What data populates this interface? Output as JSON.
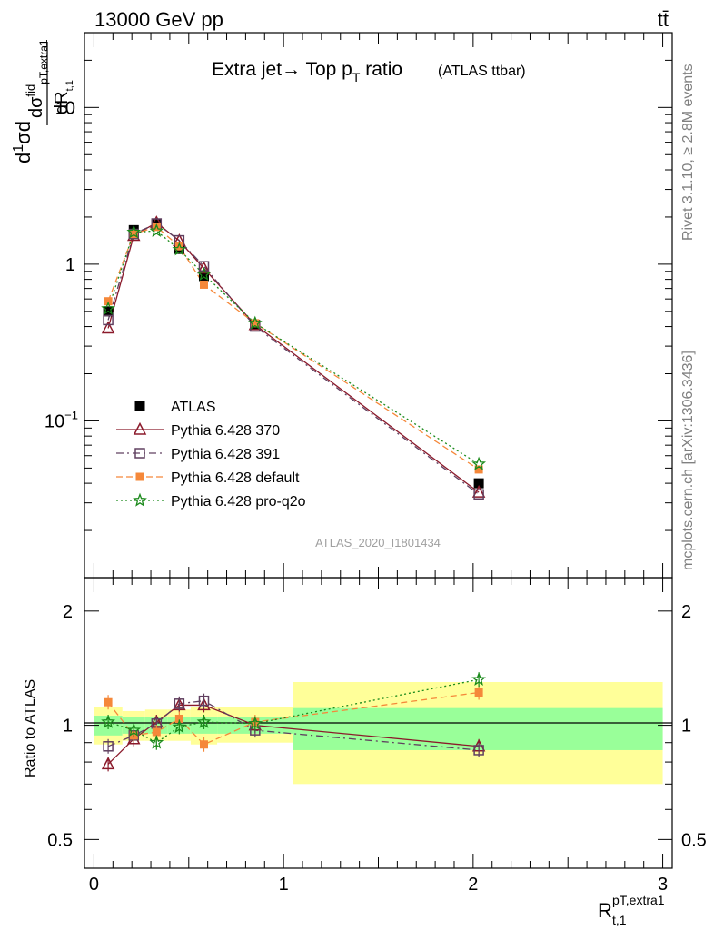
{
  "header": {
    "energy_label": "13000 GeV pp",
    "process_label": "tt̄"
  },
  "side": {
    "rivet_label": "Rivet 3.1.10, ≥ 2.8M events",
    "mcplots_label": "mcplots.cern.ch [arXiv:1306.3436]"
  },
  "chart_data": [
    {
      "type": "scatter",
      "title": "Extra jet→ Top p_T ratio",
      "subtitle": "(ATLAS ttbar)",
      "analysis_id": "ATLAS_2020_I1801434",
      "ylabel": "1/σ dσ^fid/dR_{pT,extra1} / d R_{t,1}",
      "yscale": "log",
      "ylim": [
        0.01,
        30
      ],
      "xlim": [
        -0.05,
        3.05
      ],
      "y_tick_labels": [
        "10^-1",
        "1",
        "10"
      ],
      "legend_position": "lower-left",
      "x": [
        0.075,
        0.21,
        0.33,
        0.45,
        0.58,
        0.85,
        2.03
      ],
      "series": [
        {
          "name": "ATLAS",
          "color": "#000000",
          "marker": "square",
          "line": "none",
          "values": [
            0.5,
            1.65,
            1.8,
            1.25,
            0.84,
            0.41,
            0.04
          ]
        },
        {
          "name": "Pythia 6.428 370",
          "color": "#8b1a2b",
          "marker": "triangle-open",
          "line": "solid",
          "values": [
            0.39,
            1.52,
            1.84,
            1.41,
            0.94,
            0.41,
            0.035
          ]
        },
        {
          "name": "Pythia 6.428 391",
          "color": "#604060",
          "marker": "square-open",
          "line": "dashdot",
          "values": [
            0.44,
            1.56,
            1.82,
            1.42,
            0.97,
            0.4,
            0.034
          ]
        },
        {
          "name": "Pythia 6.428 default",
          "color": "#f5883a",
          "marker": "square-filled",
          "line": "dashed",
          "values": [
            0.58,
            1.56,
            1.73,
            1.3,
            0.74,
            0.42,
            0.049
          ]
        },
        {
          "name": "Pythia 6.428 pro-q2o",
          "color": "#1b8a1b",
          "marker": "star-open",
          "line": "dotted",
          "values": [
            0.52,
            1.6,
            1.63,
            1.24,
            0.86,
            0.42,
            0.053
          ]
        }
      ]
    },
    {
      "type": "scatter",
      "ylabel": "Ratio to ATLAS",
      "xlabel": "R_{t,1}^{pT,extra1}",
      "yscale": "log",
      "ylim": [
        0.42,
        2.45
      ],
      "xlim": [
        -0.05,
        3.05
      ],
      "y_tick_labels": [
        "0.5",
        "1",
        "2"
      ],
      "x_tick_labels": [
        "0",
        "1",
        "2",
        "3"
      ],
      "reference_line": 1.0,
      "bands": [
        {
          "x_low": 0.0,
          "x_high": 0.15,
          "stat_low": 0.94,
          "stat_high": 1.06,
          "tot_low": 0.89,
          "tot_high": 1.12
        },
        {
          "x_low": 0.15,
          "x_high": 0.27,
          "stat_low": 0.95,
          "stat_high": 1.05,
          "tot_low": 0.91,
          "tot_high": 1.09
        },
        {
          "x_low": 0.27,
          "x_high": 0.39,
          "stat_low": 0.95,
          "stat_high": 1.05,
          "tot_low": 0.91,
          "tot_high": 1.1
        },
        {
          "x_low": 0.39,
          "x_high": 0.51,
          "stat_low": 0.95,
          "stat_high": 1.05,
          "tot_low": 0.91,
          "tot_high": 1.1
        },
        {
          "x_low": 0.51,
          "x_high": 0.65,
          "stat_low": 0.95,
          "stat_high": 1.05,
          "tot_low": 0.89,
          "tot_high": 1.12
        },
        {
          "x_low": 0.65,
          "x_high": 1.05,
          "stat_low": 0.95,
          "stat_high": 1.05,
          "tot_low": 0.9,
          "tot_high": 1.12
        },
        {
          "x_low": 1.05,
          "x_high": 3.0,
          "stat_low": 0.86,
          "stat_high": 1.11,
          "tot_low": 0.7,
          "tot_high": 1.3
        }
      ],
      "series": [
        {
          "name": "Pythia 6.428 370",
          "values": [
            0.79,
            0.92,
            1.02,
            1.13,
            1.13,
            1.0,
            0.88
          ]
        },
        {
          "name": "Pythia 6.428 391",
          "values": [
            0.88,
            0.94,
            1.01,
            1.14,
            1.16,
            0.97,
            0.86
          ]
        },
        {
          "name": "Pythia 6.428 default",
          "values": [
            1.15,
            0.94,
            0.96,
            1.04,
            0.89,
            1.02,
            1.22
          ]
        },
        {
          "name": "Pythia 6.428 pro-q2o",
          "values": [
            1.02,
            0.97,
            0.9,
            0.99,
            1.02,
            1.01,
            1.32
          ]
        }
      ]
    }
  ]
}
